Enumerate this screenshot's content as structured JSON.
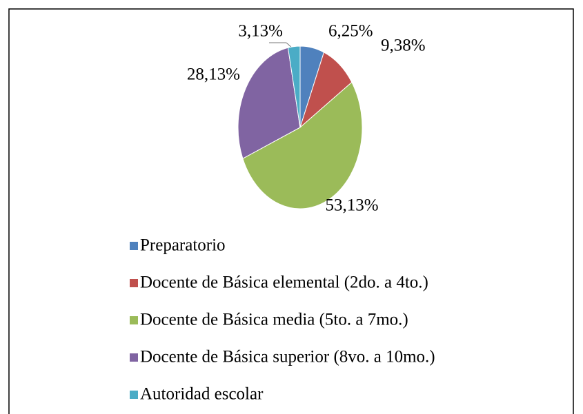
{
  "chart_data": {
    "type": "pie",
    "categories": [
      "Preparatorio",
      "Docente de Básica elemental (2do. a 4to.)",
      "Docente de Básica media (5to. a 7mo.)",
      "Docente de Básica superior (8vo. a 10mo.)",
      "Autoridad escolar"
    ],
    "values": [
      6.25,
      9.38,
      53.13,
      28.13,
      3.13
    ],
    "value_labels": [
      "6,25%",
      "9,38%",
      "53,13%",
      "28,13%",
      "3,13%"
    ],
    "colors": [
      "#4f81bd",
      "#c0504d",
      "#9bbb59",
      "#8064a2",
      "#4bacc6"
    ],
    "legend": "bottom"
  }
}
